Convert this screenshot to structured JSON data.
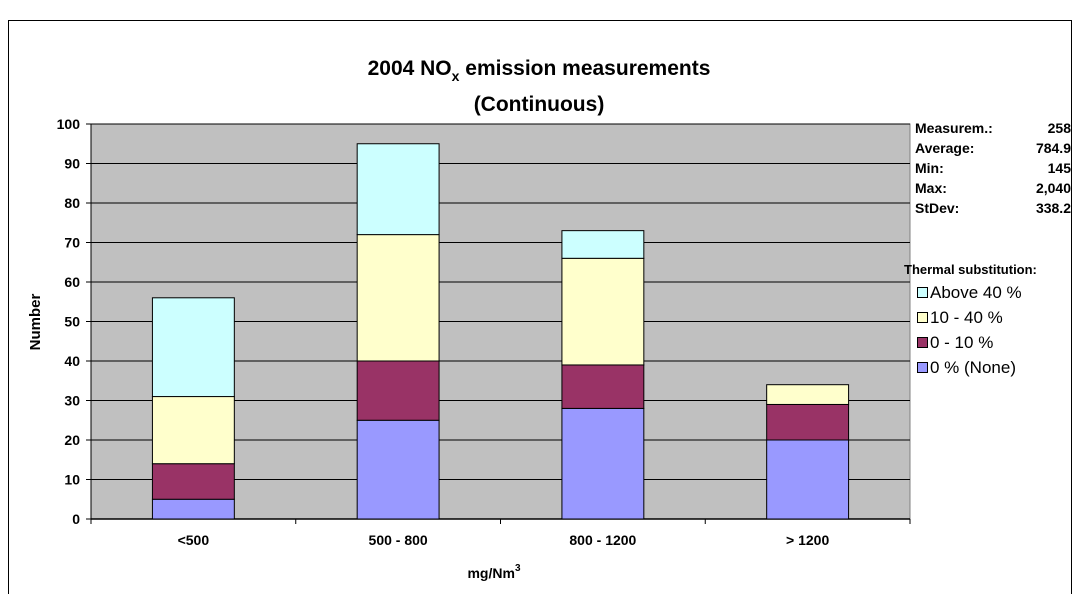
{
  "chart_data": {
    "type": "bar",
    "stacked": true,
    "title_main": "2004 NO",
    "title_sub": "x",
    "title_rest": " emission measurements",
    "title_line2": "(Continuous)",
    "xlabel_main": "mg/Nm",
    "xlabel_sup": "3",
    "ylabel": "Number",
    "ylim": [
      0,
      100
    ],
    "yticks": [
      0,
      10,
      20,
      30,
      40,
      50,
      60,
      70,
      80,
      90,
      100
    ],
    "grid": true,
    "categories": [
      "<500",
      "500 - 800",
      "800 - 1200",
      "> 1200"
    ],
    "series": [
      {
        "name": "0 % (None)",
        "values": [
          5,
          25,
          28,
          20
        ],
        "color": "#9999ff"
      },
      {
        "name": "0 - 10 %",
        "values": [
          9,
          15,
          11,
          9
        ],
        "color": "#993366"
      },
      {
        "name": "10 - 40 %",
        "values": [
          17,
          32,
          27,
          5
        ],
        "color": "#ffffcc"
      },
      {
        "name": "Above 40 %",
        "values": [
          25,
          23,
          7,
          0
        ],
        "color": "#ccffff"
      }
    ],
    "plot_background": "#c0c0c0",
    "legend_title": "Thermal substitution:",
    "legend_position": "right"
  },
  "stats": [
    {
      "label": "Measurem.:",
      "value": "258"
    },
    {
      "label": "Average:",
      "value": "784.9"
    },
    {
      "label": "Min:",
      "value": "145"
    },
    {
      "label": "Max:",
      "value": "2,040"
    },
    {
      "label": "StDev:",
      "value": "338.2"
    }
  ]
}
